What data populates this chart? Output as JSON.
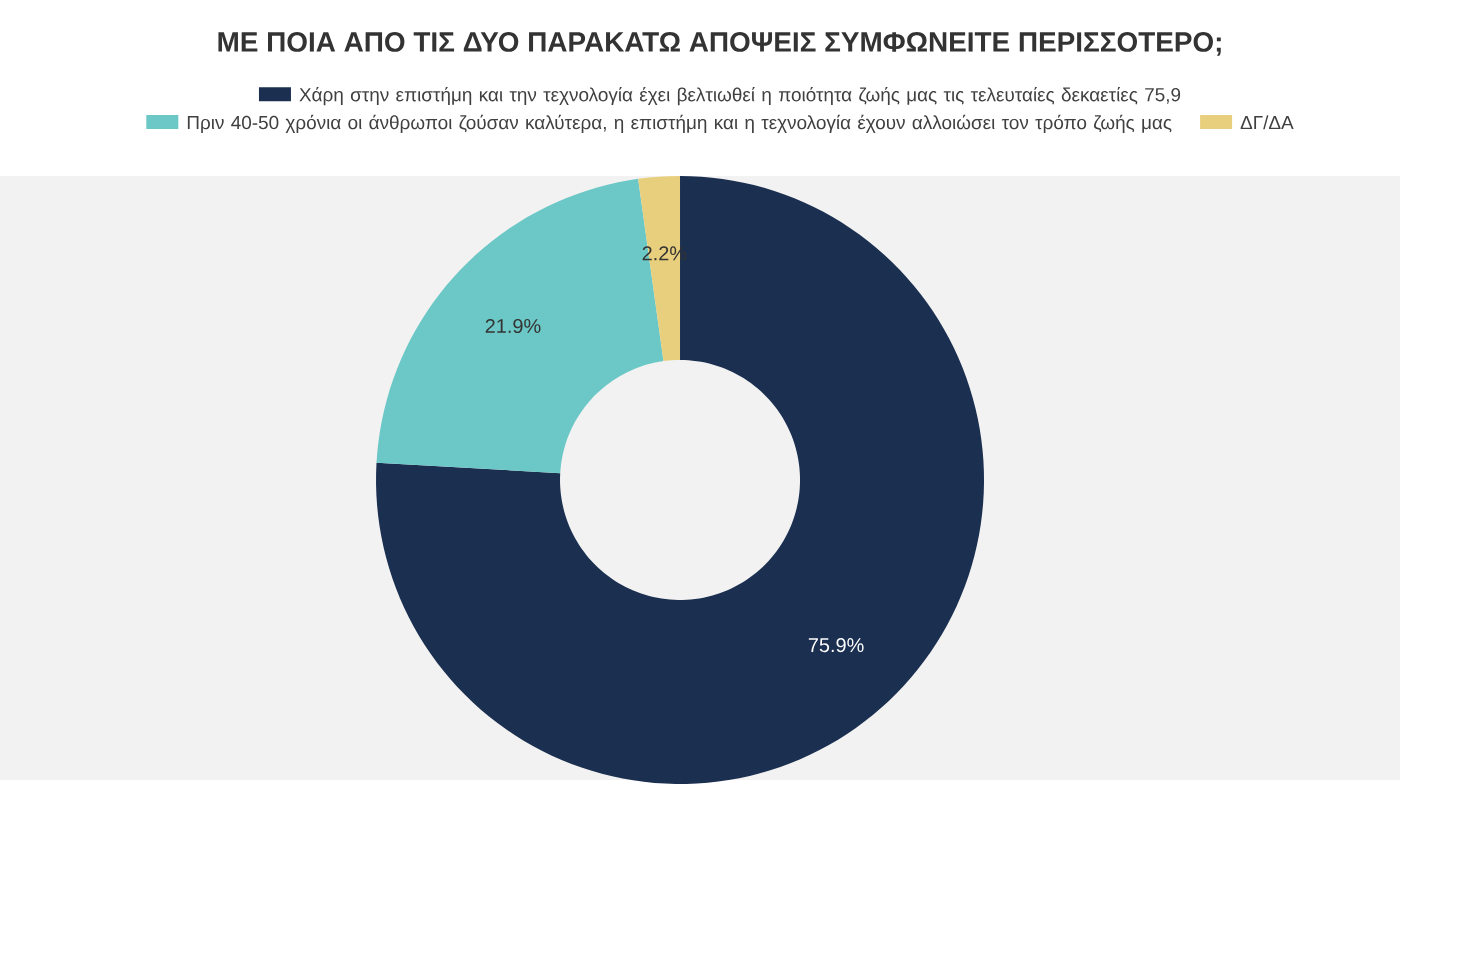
{
  "chart_data": {
    "type": "donut",
    "title": "ΜΕ ΠΟΙΑ ΑΠΟ ΤΙΣ ΔΥΟ ΠΑΡΑΚΑΤΩ ΑΠΟΨΕΙΣ ΣΥΜΦΩΝΕΙΤΕ ΠΕΡΙΣΣΟΤΕΡΟ;",
    "categories": [
      "Χάρη στην επιστήμη και την τεχνολογία έχει βελτιωθεί η ποιότητα ζωής μας τις τελευταίες δεκαετίες 75,9",
      "Πριν 40-50 χρόνια οι άνθρωποι ζούσαν καλύτερα, η επιστήμη και η τεχνολογία έχουν αλλοιώσει τον τρόπο ζωής μας",
      "ΔΓ/ΔΑ"
    ],
    "values": [
      75.9,
      21.9,
      2.2
    ],
    "colors": [
      "#1b2f50",
      "#6cc8c6",
      "#e8cf7d"
    ],
    "value_labels": [
      "75.9%",
      "21.9%",
      "2.2%"
    ],
    "legend": "top"
  }
}
